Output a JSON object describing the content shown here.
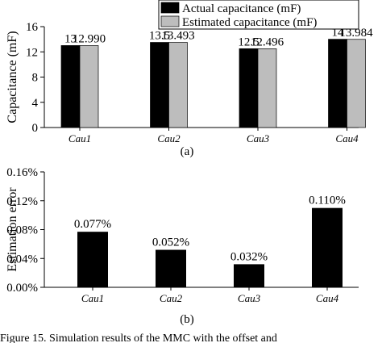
{
  "chart_data": [
    {
      "type": "bar",
      "panel_label": "(a)",
      "ylabel": "Capacitance (mF)",
      "categories": [
        "Cau1",
        "Cau2",
        "Cau3",
        "Cau4"
      ],
      "series": [
        {
          "name": "Actual capacitance (mF)",
          "color": "#000000",
          "values": [
            13,
            13.5,
            12.5,
            14
          ]
        },
        {
          "name": "Estimated capacitance (mF)",
          "color": "#bdbdbd",
          "values": [
            12.99,
            13.493,
            12.496,
            13.984
          ],
          "value_labels": [
            "12.990",
            "13.493",
            "12.496",
            "13.984"
          ]
        }
      ],
      "ylim": [
        0,
        16
      ],
      "yticks": [
        0,
        4,
        8,
        12,
        16
      ],
      "legend": "top-right"
    },
    {
      "type": "bar",
      "panel_label": "(b)",
      "ylabel": "Estimation error",
      "categories": [
        "Cau1",
        "Cau2",
        "Cau3",
        "Cau4"
      ],
      "values": [
        0.077,
        0.052,
        0.032,
        0.11
      ],
      "value_labels": [
        "0.077%",
        "0.052%",
        "0.032%",
        "0.110%"
      ],
      "color": "#000000",
      "ylim": [
        0,
        0.16
      ],
      "yticks": [
        {
          "value": 0,
          "label": "0.00%"
        },
        {
          "value": 0.04,
          "label": "0.04%"
        },
        {
          "value": 0.08,
          "label": "0.08%"
        },
        {
          "value": 0.12,
          "label": "0.12%"
        },
        {
          "value": 0.16,
          "label": "0.16%"
        }
      ]
    }
  ],
  "caption": "Figure 15. Simulation results of the MMC with the offset and"
}
